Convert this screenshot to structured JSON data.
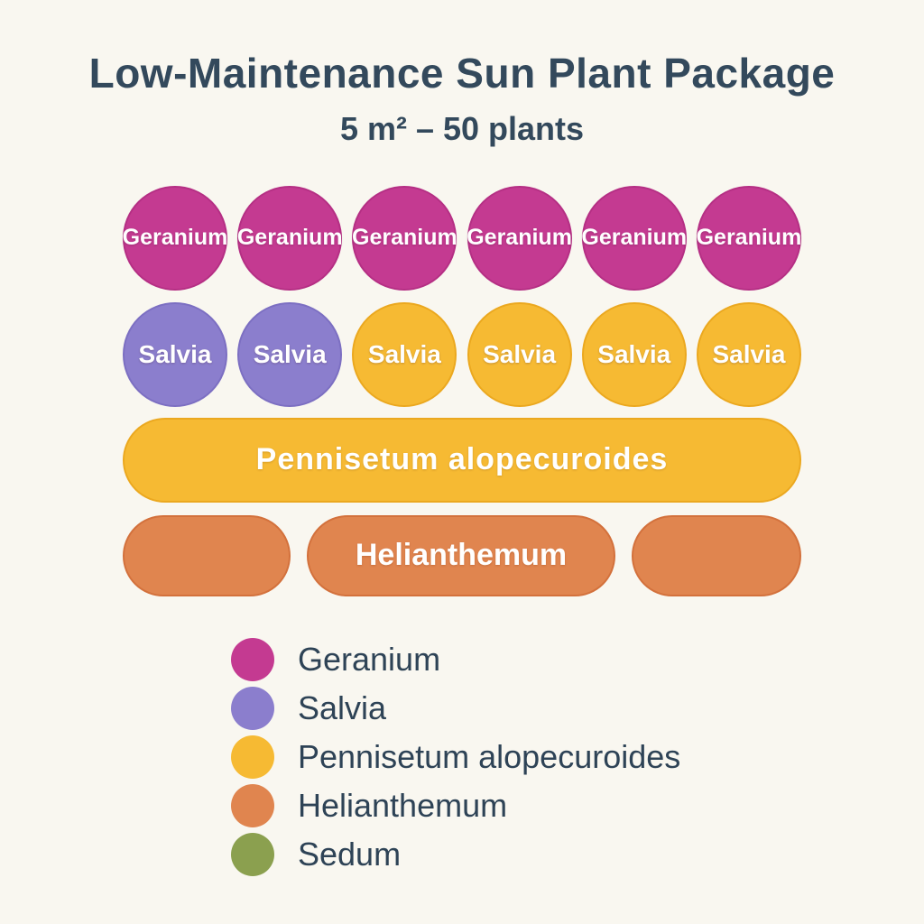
{
  "title": "Low-Maintenance Sun Plant Package",
  "subtitle": "5 m² – 50 plants",
  "palette": {
    "background": "#F9F7F0",
    "heading_text": "#33495C",
    "shape_label_text": "#FFFFFF",
    "geranium": "#C43A91",
    "salvia": "#8B7ECD",
    "pennisetum": "#F6BA33",
    "helianthemum": "#E0854F",
    "sedum": "#8BA04F"
  },
  "plot": {
    "row1": [
      {
        "label": "Geranium",
        "color": "#C43A91"
      },
      {
        "label": "Geranium",
        "color": "#C43A91"
      },
      {
        "label": "Geranium",
        "color": "#C43A91"
      },
      {
        "label": "Geranium",
        "color": "#C43A91"
      },
      {
        "label": "Geranium",
        "color": "#C43A91"
      },
      {
        "label": "Geranium",
        "color": "#C43A91"
      }
    ],
    "row2": [
      {
        "label": "Salvia",
        "color": "#8B7ECD"
      },
      {
        "label": "Salvia",
        "color": "#8B7ECD"
      },
      {
        "label": "Salvia",
        "color": "#F6BA33"
      },
      {
        "label": "Salvia",
        "color": "#F6BA33"
      },
      {
        "label": "Salvia",
        "color": "#F6BA33"
      },
      {
        "label": "Salvia",
        "color": "#F6BA33"
      }
    ],
    "bar": {
      "label": "Pennisetum alopecuroides",
      "color": "#F6BA33"
    },
    "pill_row": [
      {
        "label": "",
        "color": "#E0854F"
      },
      {
        "label": "Helianthemum",
        "color": "#E0854F"
      },
      {
        "label": "",
        "color": "#E0854F"
      }
    ]
  },
  "legend": {
    "items": [
      {
        "label": "Geranium",
        "color": "#C43A91"
      },
      {
        "label": "Salvia",
        "color": "#8B7ECD"
      },
      {
        "label": "Pennisetum alopecuroides",
        "color": "#F6BA33"
      },
      {
        "label": "Helianthemum",
        "color": "#E0854F"
      },
      {
        "label": "Sedum",
        "color": "#8BA04F"
      }
    ]
  }
}
